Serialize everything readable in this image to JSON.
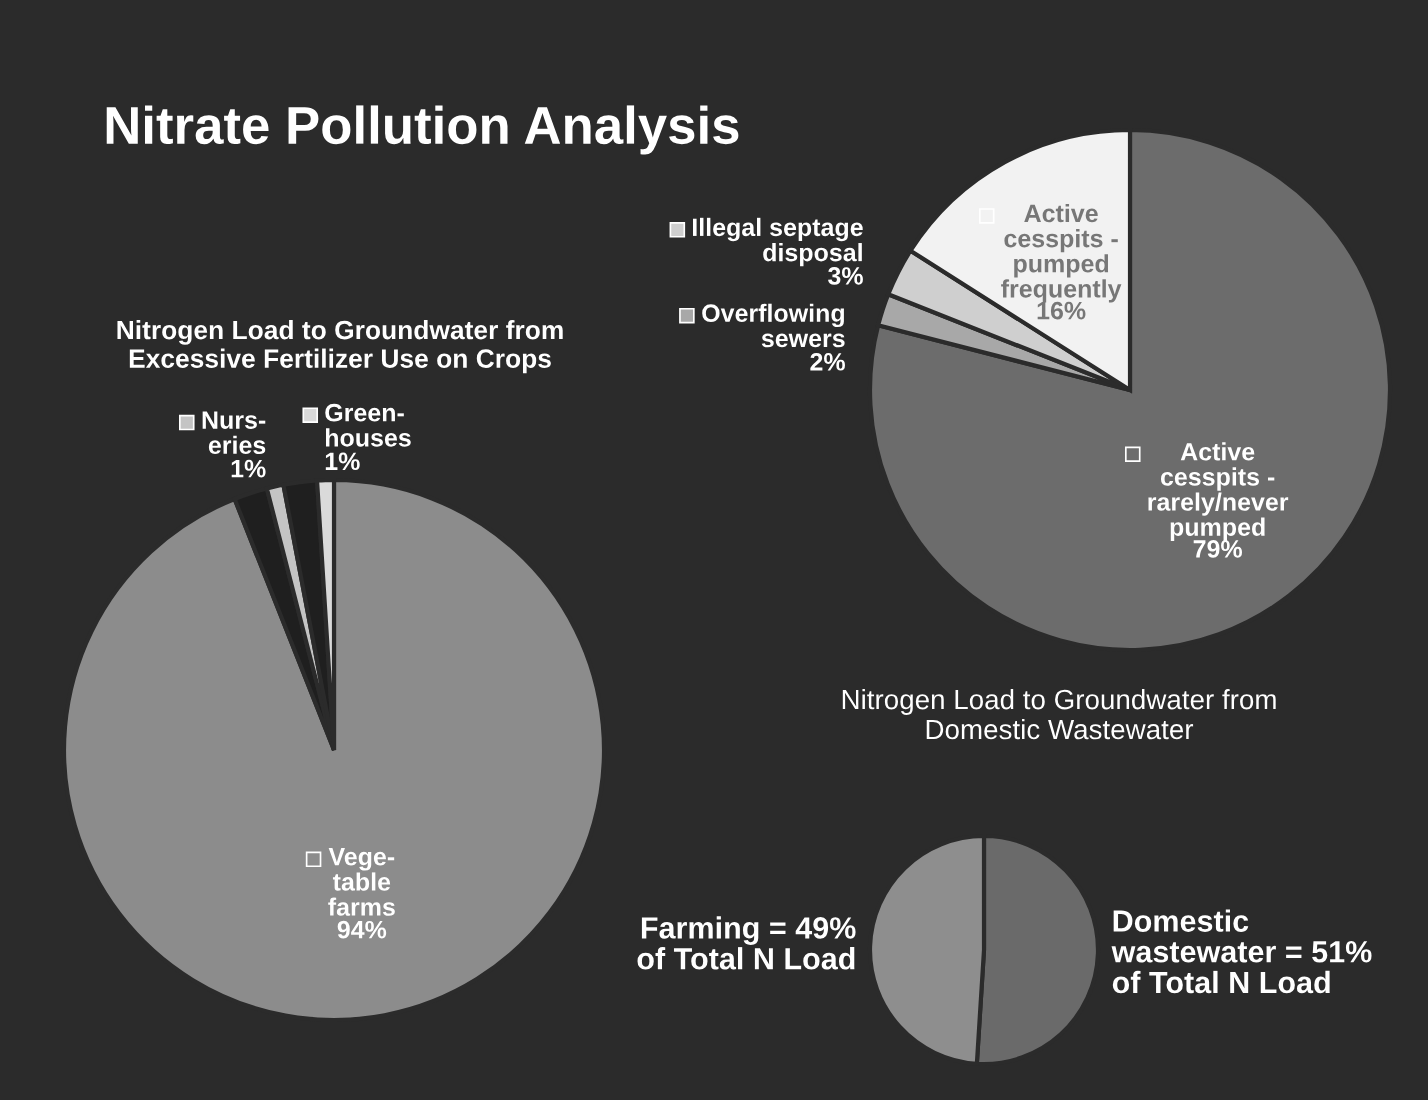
{
  "chart_data": [
    {
      "type": "other",
      "title": "Nitrate Pollution Analysis"
    },
    {
      "type": "pie",
      "title": "Nitrogen Load to Groundwater from\nExcessive Fertilizer Use on Crops",
      "categories": [
        "Vege-\ntable\nfarms",
        null,
        "Nurs-\neries",
        null,
        "Green-\nhouses"
      ],
      "values": [
        94,
        2,
        1,
        2,
        1
      ],
      "colors": [
        "#8c8c8c",
        "#1f1f1f",
        "#c4c4c4",
        "#1f1f1f",
        "#dadada"
      ],
      "value_labels": [
        "94%",
        null,
        "1%",
        null,
        "1%"
      ],
      "legend": "top"
    },
    {
      "type": "pie",
      "title": "Nitrogen Load to Groundwater from\nDomestic Wastewater",
      "categories": [
        "Active\ncesspits -\nrarely/never\npumped",
        "Overflowing\nsewers",
        "Illegal septage\ndisposal",
        "Active\ncesspits -\npumped\nfrequently"
      ],
      "values": [
        79,
        2,
        3,
        16
      ],
      "colors": [
        "#6c6c6c",
        "#a8a8a8",
        "#cfcfcf",
        "#f2f2f2"
      ],
      "value_labels": [
        "79%",
        "2%",
        "3%",
        "16%"
      ],
      "legend": "left"
    },
    {
      "type": "pie",
      "categories": [
        null,
        null
      ],
      "values": [
        51,
        49
      ],
      "colors": [
        "#6a6a6a",
        "#8e8e8e"
      ],
      "value_labels": [
        "Domestic\nwastewater = 51%\nof Total N Load",
        "Farming = 49%\nof Total N Load"
      ]
    }
  ]
}
